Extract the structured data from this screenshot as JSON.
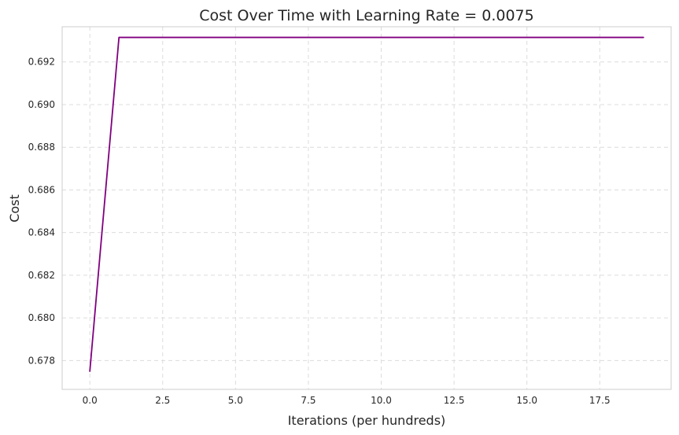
{
  "chart_data": {
    "type": "line",
    "title": "Cost Over Time with Learning Rate = 0.0075",
    "xlabel": "Iterations (per hundreds)",
    "ylabel": "Cost",
    "xlim": [
      -0.95,
      19.95
    ],
    "ylim": [
      0.67665,
      0.69365
    ],
    "x_ticks": [
      0.0,
      2.5,
      5.0,
      7.5,
      10.0,
      12.5,
      15.0,
      17.5
    ],
    "x_tick_labels": [
      "0.0",
      "2.5",
      "5.0",
      "7.5",
      "10.0",
      "12.5",
      "15.0",
      "17.5"
    ],
    "y_ticks": [
      0.678,
      0.68,
      0.682,
      0.684,
      0.686,
      0.688,
      0.69,
      0.692
    ],
    "y_tick_labels": [
      "0.678",
      "0.680",
      "0.682",
      "0.684",
      "0.686",
      "0.688",
      "0.690",
      "0.692"
    ],
    "grid": true,
    "legend": null,
    "line_color": "#800080",
    "series": [
      {
        "x": [
          0,
          1,
          2,
          3,
          4,
          5,
          6,
          7,
          8,
          9,
          10,
          11,
          12,
          13,
          14,
          15,
          16,
          17,
          18,
          19
        ],
        "values": [
          0.6775,
          0.69315,
          0.69315,
          0.69315,
          0.69315,
          0.69315,
          0.69315,
          0.69315,
          0.69315,
          0.69315,
          0.69315,
          0.69315,
          0.69315,
          0.69315,
          0.69315,
          0.69315,
          0.69315,
          0.69315,
          0.69315,
          0.69315
        ]
      }
    ]
  }
}
